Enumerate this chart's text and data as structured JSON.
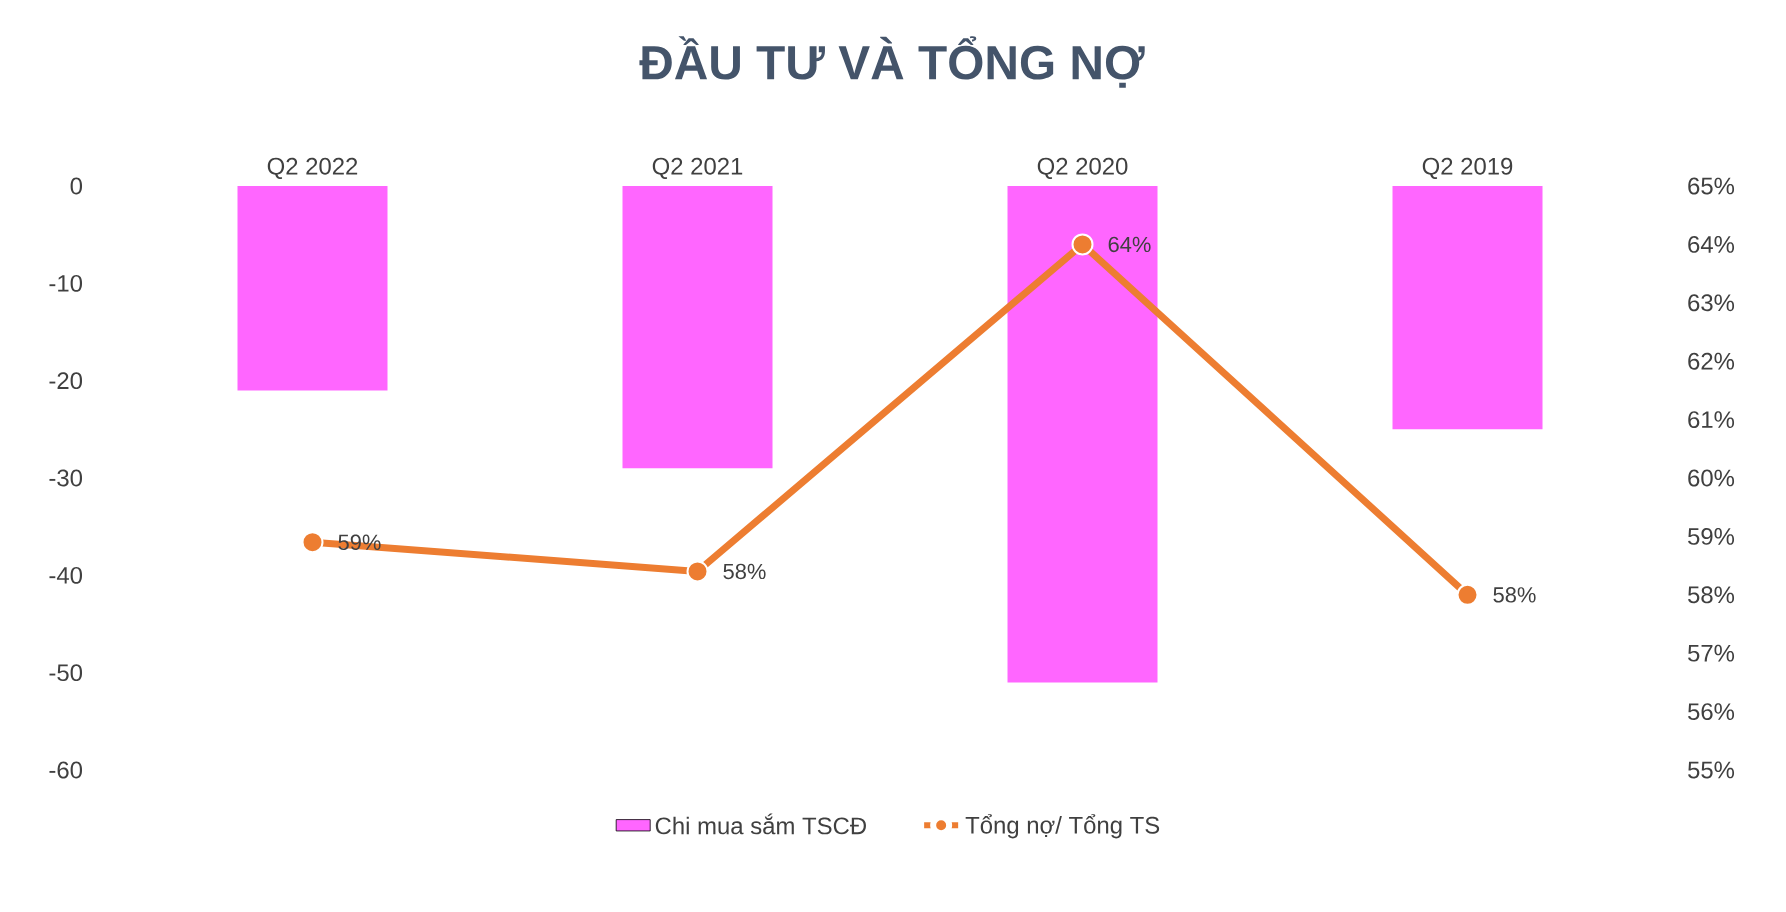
{
  "chart_data": {
    "type": "bar",
    "title": "ĐẦU TƯ VÀ TỔNG NỢ",
    "categories": [
      "Q2 2022",
      "Q2 2021",
      "Q2 2020",
      "Q2 2019"
    ],
    "series": [
      {
        "name": "Chi mua sắm TSCĐ",
        "color": "#ff66ff",
        "values": [
          -21,
          -29,
          -51,
          -25
        ]
      },
      {
        "name": "Tổng nợ/ Tổng TS",
        "type": "line",
        "axis": "y2",
        "color": "#ed7d31",
        "marker": "circle",
        "values": [
          58.9,
          58.4,
          64.0,
          58.0
        ],
        "value_labels": [
          "59%",
          "58%",
          "64%",
          "58%"
        ]
      }
    ],
    "ylim": [
      -60,
      0
    ],
    "yticks": [
      -60,
      -50,
      -40,
      -30,
      -20,
      -10,
      0
    ],
    "y2lim": [
      55,
      65
    ],
    "y2ticks": [
      {
        "value": 55,
        "label": "55%"
      },
      {
        "value": 56,
        "label": "56%"
      },
      {
        "value": 57,
        "label": "57%"
      },
      {
        "value": 58,
        "label": "58%"
      },
      {
        "value": 59,
        "label": "59%"
      },
      {
        "value": 60,
        "label": "60%"
      },
      {
        "value": 61,
        "label": "61%"
      },
      {
        "value": 62,
        "label": "62%"
      },
      {
        "value": 63,
        "label": "63%"
      },
      {
        "value": 64,
        "label": "64%"
      },
      {
        "value": 65,
        "label": "65%"
      }
    ],
    "grid": false,
    "legend": "bottom"
  }
}
